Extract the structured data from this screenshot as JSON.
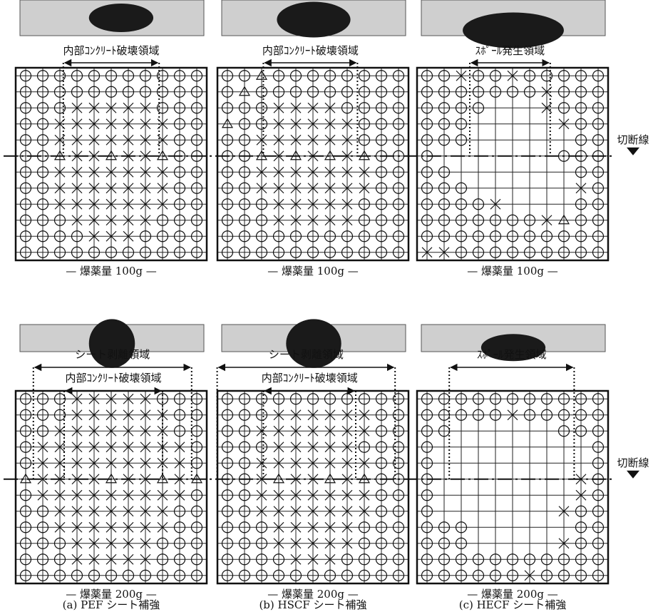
{
  "panels": [
    {
      "caption": "— 爆薬量 100g —",
      "regions": [
        {
          "label": "内部ｺﾝｸﾘｰﾄ破壊領域"
        }
      ],
      "grid": [
        "ooooooooooo",
        "ooooooooooo",
        "oooxxxxxooo",
        "ooxxxxxxxoo",
        "ooxxxxxxxoo",
        "ootxxtxxtoo",
        "ooxxxxxxxoo",
        "ooxxxxxxxoo",
        "ooxxxxxxxoo",
        "oooxxxxxooo",
        "ooooxxxoooo",
        "ooooooooooo"
      ]
    },
    {
      "caption": "— 爆薬量 100g —",
      "regions": [
        {
          "label": "内部ｺﾝｸﾘｰﾄ破壊領域"
        }
      ],
      "grid": [
        "ootoooooooo",
        "otooooooooo",
        "oooxxxxoooo",
        "tooxxxxxooo",
        "ooxxxxxxooo",
        "ootxtxtxtoo",
        "ooxxxxxxxoo",
        "ooxxxxxxxoo",
        "oooxxxxxooo",
        "oooxxxxxooo",
        "ooooooooooo",
        "ooooooooooo"
      ]
    },
    {
      "caption": "— 爆薬量 100g —",
      "regions": [
        {
          "label": "ｽﾎﾟｰﾙ発生領域"
        }
      ],
      "grid": [
        "ooxooxooooo",
        "oooooooxooo",
        "oooo...xooo",
        "ooo.....xoo",
        "ooo......oo",
        "o.......ooo",
        "oo.......oo",
        "ooo......xo",
        "oooox....oo",
        "oooooooxtoo",
        "ooooooooooo",
        "xxooooooooo"
      ]
    },
    {
      "caption": "— 爆薬量 200g —",
      "regions": [
        {
          "label": "シート剥離領域"
        },
        {
          "label": "内部ｺﾝｸﾘｰﾄ破壊領域"
        }
      ],
      "grid": [
        "oooxxxxxooo",
        "oooxxxxxxoo",
        "ooxxxxxxxoo",
        "oxxxxxxxxxo",
        "oxxxxxxxxxo",
        "txxxxtxxtxt",
        "oxxxxxxxxxo",
        "ooxxxxxxxoo",
        "ooxxxxxxxoo",
        "oooxxxxxooo",
        "oooxxxxxooo",
        "ooooooooooo"
      ]
    },
    {
      "caption": "— 爆薬量 200g —",
      "regions": [
        {
          "label": "シート剥離領域"
        },
        {
          "label": "内部ｺﾝｸﾘｰﾄ破壊領域"
        }
      ],
      "grid": [
        "ooooooooooo",
        "oooxxxxxxoo",
        "ooxxxxxxxoo",
        "oooxxxxxooo",
        "ooxxxxxxxoo",
        "ooxtxxtxtoo",
        "ooxxxxxxxoo",
        "ooxxxxxxxoo",
        "oooxxxxxooo",
        "oooxxxxxooo",
        "ooooxxxoooo",
        "ooooooooooo"
      ]
    },
    {
      "caption": "— 爆薬量 200g —",
      "regions": [
        {
          "label": "ｽﾎﾟｰﾙ発生領域"
        }
      ],
      "grid": [
        "ooooooooooo",
        "oooooxooooo",
        "oo......ooo",
        "o.........o",
        "o.........o",
        "o........xo",
        "o........xo",
        "o.......xoo",
        "ooo......oo",
        "ooo.....xoo",
        "ooooooooooo",
        "ooooooxoooo"
      ]
    }
  ],
  "columns": [
    {
      "label": "(a)  PEF シート補強"
    },
    {
      "label": "(b)  HSCF シート補強"
    },
    {
      "label": "(c)  HECF シート補強"
    }
  ],
  "cut_label": "切断線"
}
